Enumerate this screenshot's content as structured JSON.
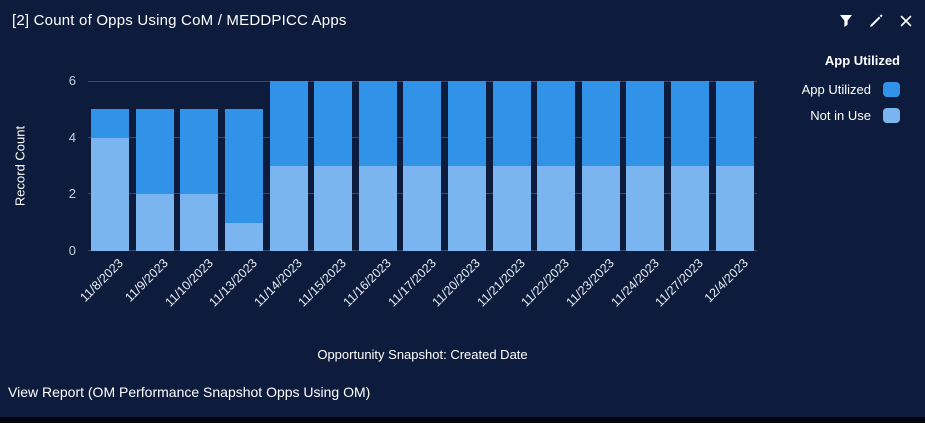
{
  "widget": {
    "title": "[2] Count of Opps Using CoM / MEDDPICC Apps",
    "footer_link": "View Report (OM Performance Snapshot Opps Using OM)",
    "toolbar_icons": [
      "filter-funnel",
      "edit-pencil",
      "close-x"
    ]
  },
  "legend": {
    "header": "App Utilized",
    "items": [
      {
        "label": "App Utilized",
        "color": "#3093e8"
      },
      {
        "label": "Not in Use",
        "color": "#7ab5ef"
      }
    ]
  },
  "chart_data": {
    "type": "bar",
    "stacked": true,
    "title": "[2] Count of Opps Using CoM / MEDDPICC Apps",
    "xlabel": "Opportunity Snapshot: Created Date",
    "ylabel": "Record Count",
    "ylim": [
      0,
      6
    ],
    "yticks": [
      0,
      2,
      4,
      6
    ],
    "grid": true,
    "legend_position": "right",
    "categories": [
      "11/8/2023",
      "11/9/2023",
      "11/10/2023",
      "11/13/2023",
      "11/14/2023",
      "11/15/2023",
      "11/16/2023",
      "11/17/2023",
      "11/20/2023",
      "11/21/2023",
      "11/22/2023",
      "11/23/2023",
      "11/24/2023",
      "11/27/2023",
      "12/4/2023"
    ],
    "series": [
      {
        "name": "App Utilized",
        "stack_position": "top",
        "color": "#3093e8",
        "values": [
          1,
          3,
          3,
          4,
          3,
          3,
          3,
          3,
          3,
          3,
          3,
          3,
          3,
          3,
          3
        ]
      },
      {
        "name": "Not in Use",
        "stack_position": "bottom",
        "color": "#7ab5ef",
        "values": [
          4,
          2,
          2,
          1,
          3,
          3,
          3,
          3,
          3,
          3,
          3,
          3,
          3,
          3,
          3
        ]
      }
    ]
  },
  "colors": {
    "background": "#0d1c3d",
    "app_utilized": "#3093e8",
    "not_in_use": "#7ab5ef",
    "gridline": "rgba(170,190,220,0.28)",
    "tick_text": "#c6cddb"
  }
}
